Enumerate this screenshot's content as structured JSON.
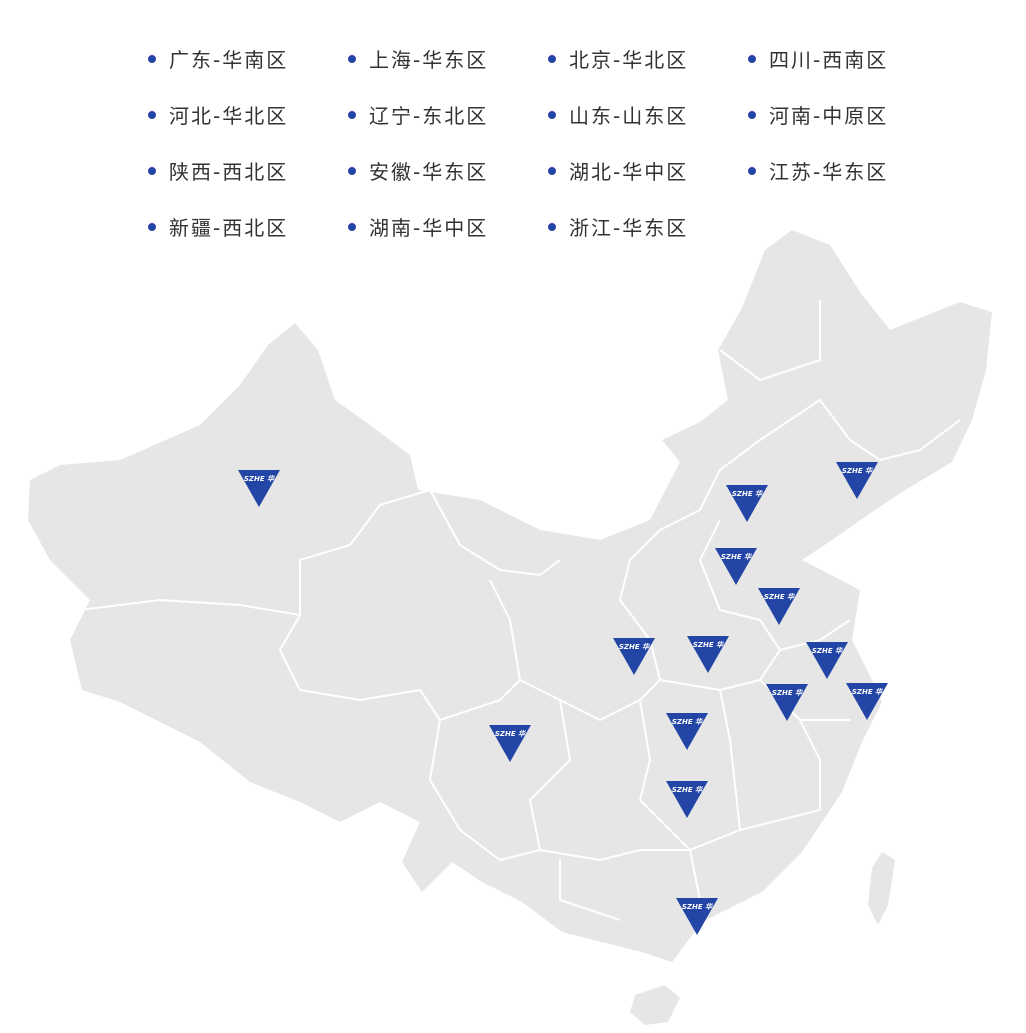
{
  "legend": {
    "items": [
      {
        "label": "广东-华南区"
      },
      {
        "label": "上海-华东区"
      },
      {
        "label": "北京-华北区"
      },
      {
        "label": "四川-西南区"
      },
      {
        "label": "河北-华北区"
      },
      {
        "label": "辽宁-东北区"
      },
      {
        "label": "山东-山东区"
      },
      {
        "label": "河南-中原区"
      },
      {
        "label": "陕西-西北区"
      },
      {
        "label": "安徽-华东区"
      },
      {
        "label": "湖北-华中区"
      },
      {
        "label": "江苏-华东区"
      },
      {
        "label": "新疆-西北区"
      },
      {
        "label": "湖南-华中区"
      },
      {
        "label": "浙江-华东区"
      }
    ]
  },
  "map": {
    "land_color": "#e6e6e6",
    "border_color": "#ffffff",
    "marker_color": "#2346a6",
    "marker_logo": "SZHE 华"
  }
}
